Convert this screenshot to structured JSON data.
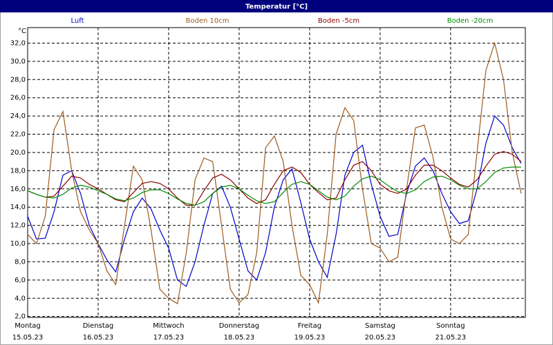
{
  "chart_data": {
    "type": "line",
    "title": "Temperatur [°C]",
    "y_label": "°C",
    "x": [
      0,
      0.125,
      0.25,
      0.375,
      0.5,
      0.625,
      0.75,
      0.875,
      1,
      1.125,
      1.25,
      1.375,
      1.5,
      1.625,
      1.75,
      1.875,
      2,
      2.125,
      2.25,
      2.375,
      2.5,
      2.625,
      2.75,
      2.875,
      3,
      3.125,
      3.25,
      3.375,
      3.5,
      3.625,
      3.75,
      3.875,
      4,
      4.125,
      4.25,
      4.375,
      4.5,
      4.625,
      4.75,
      4.875,
      5,
      5.125,
      5.25,
      5.375,
      5.5,
      5.625,
      5.75,
      5.875,
      6,
      6.125,
      6.25,
      6.375,
      6.5,
      6.625,
      6.75,
      6.875,
      7
    ],
    "xlim": [
      0,
      7.06
    ],
    "xticks": [
      {
        "value": 0,
        "label": "15.05.23"
      },
      {
        "value": 1,
        "label": "16.05.23"
      },
      {
        "value": 2,
        "label": "17.05.23"
      },
      {
        "value": 3,
        "label": "18.05.23"
      },
      {
        "value": 4,
        "label": "19.05.23"
      },
      {
        "value": 5,
        "label": "20.05.23"
      },
      {
        "value": 6,
        "label": "21.05.23"
      }
    ],
    "xtick_weekdays": [
      "Montag",
      "Dienstag",
      "Mittwoch",
      "Donnerstag",
      "Freitag",
      "Samstag",
      "Sonntag"
    ],
    "ylim": [
      1.9,
      33.7
    ],
    "yticks": [
      {
        "value": 2,
        "label": "2,0"
      },
      {
        "value": 4,
        "label": "4,0"
      },
      {
        "value": 6,
        "label": "6,0"
      },
      {
        "value": 8,
        "label": "8,0"
      },
      {
        "value": 10,
        "label": "10,0"
      },
      {
        "value": 12,
        "label": "12,0"
      },
      {
        "value": 14,
        "label": "14,0"
      },
      {
        "value": 16,
        "label": "16,0"
      },
      {
        "value": 18,
        "label": "18,0"
      },
      {
        "value": 20,
        "label": "20,0"
      },
      {
        "value": 22,
        "label": "22,0"
      },
      {
        "value": 24,
        "label": "24,0"
      },
      {
        "value": 26,
        "label": "26,0"
      },
      {
        "value": 28,
        "label": "28,0"
      },
      {
        "value": 30,
        "label": "30,0"
      },
      {
        "value": 32,
        "label": "32,0"
      }
    ],
    "grid": true,
    "series": [
      {
        "name": "Luft",
        "color": "#0000c8",
        "values": [
          13.0,
          10.5,
          10.6,
          13.5,
          17.5,
          18.0,
          15.5,
          12.0,
          10.0,
          8.2,
          6.9,
          10.5,
          13.5,
          15.0,
          13.8,
          11.5,
          9.5,
          6.0,
          5.3,
          8.0,
          12.0,
          15.5,
          16.3,
          14.0,
          10.5,
          7.0,
          6.0,
          9.0,
          14.0,
          17.0,
          18.2,
          14.5,
          10.5,
          8.0,
          6.3,
          11.0,
          17.5,
          20.0,
          20.8,
          16.5,
          13.0,
          10.8,
          11.0,
          15.5,
          18.5,
          19.4,
          18.0,
          15.5,
          13.5,
          12.2,
          12.5,
          16.0,
          21.0,
          24.0,
          23.0,
          20.5,
          18.8
        ]
      },
      {
        "name": "Boden 10cm",
        "color": "#9c5a1e",
        "values": [
          11.0,
          10.0,
          13.0,
          22.5,
          24.5,
          18.0,
          13.5,
          11.5,
          10.0,
          7.0,
          5.5,
          12.0,
          18.5,
          17.0,
          11.5,
          5.0,
          4.0,
          3.4,
          9.0,
          17.0,
          19.4,
          19.0,
          12.0,
          5.0,
          3.5,
          4.4,
          9.0,
          20.5,
          21.8,
          19.0,
          12.0,
          6.5,
          5.5,
          3.5,
          11.0,
          22.0,
          24.9,
          23.5,
          16.0,
          10.0,
          9.5,
          8.0,
          8.5,
          16.0,
          22.7,
          23.0,
          19.5,
          14.0,
          10.5,
          10.0,
          11.0,
          20.0,
          29.0,
          32.0,
          28.0,
          20.0,
          15.5
        ]
      },
      {
        "name": "Boden -5cm",
        "color": "#8b0000",
        "values": [
          15.8,
          15.4,
          15.1,
          15.2,
          16.3,
          17.4,
          17.2,
          16.5,
          16.0,
          15.4,
          14.8,
          14.6,
          15.6,
          16.6,
          16.8,
          16.6,
          16.0,
          15.0,
          14.2,
          14.2,
          15.8,
          17.2,
          17.6,
          17.0,
          16.0,
          15.0,
          14.4,
          14.8,
          16.5,
          18.0,
          18.4,
          17.8,
          16.5,
          15.6,
          14.8,
          15.0,
          17.0,
          18.6,
          19.0,
          18.0,
          16.5,
          15.8,
          15.5,
          16.0,
          17.5,
          18.6,
          18.6,
          18.0,
          17.2,
          16.5,
          16.2,
          17.0,
          18.5,
          19.8,
          20.1,
          19.8,
          19.0
        ]
      },
      {
        "name": "Boden -20cm",
        "color": "#008a00",
        "values": [
          15.8,
          15.4,
          15.1,
          15.0,
          15.4,
          16.1,
          16.4,
          16.2,
          15.8,
          15.4,
          14.9,
          14.7,
          15.0,
          15.6,
          15.9,
          15.9,
          15.5,
          14.9,
          14.4,
          14.2,
          14.6,
          15.5,
          16.2,
          16.4,
          16.0,
          15.3,
          14.7,
          14.4,
          14.6,
          15.6,
          16.5,
          16.8,
          16.5,
          15.8,
          15.1,
          14.8,
          15.2,
          16.3,
          17.1,
          17.4,
          17.0,
          16.3,
          15.7,
          15.5,
          15.9,
          16.8,
          17.3,
          17.4,
          17.0,
          16.4,
          16.0,
          16.0,
          16.8,
          17.8,
          18.3,
          18.4,
          18.4
        ]
      }
    ]
  }
}
